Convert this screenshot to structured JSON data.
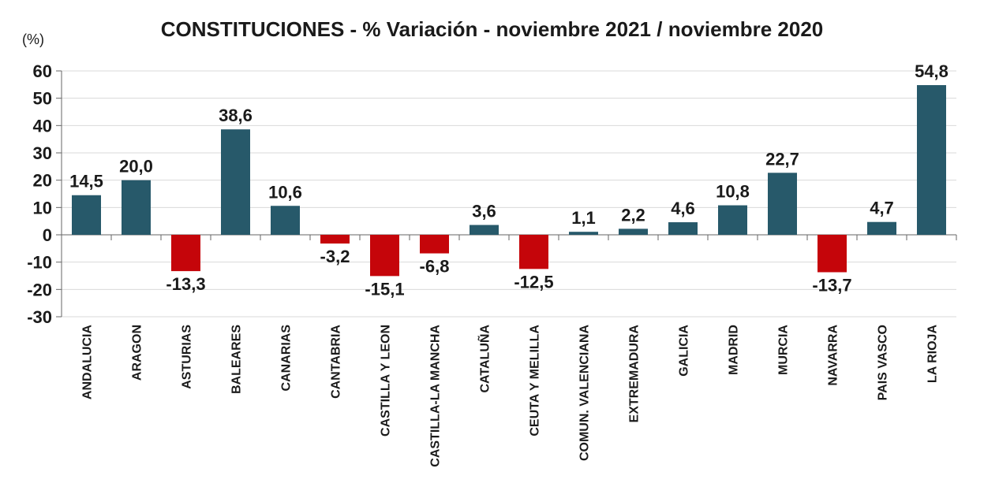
{
  "header": {
    "title": "CONSTITUCIONES - % Variación - noviembre 2021 / noviembre 2020",
    "y_axis_unit": "(%)"
  },
  "chart_data": {
    "type": "bar",
    "title": "CONSTITUCIONES - % Variación - noviembre 2021 / noviembre 2020",
    "xlabel": "",
    "ylabel": "(%)",
    "categories": [
      "ANDALUCIA",
      "ARAGON",
      "ASTURIAS",
      "BALEARES",
      "CANARIAS",
      "CANTABRIA",
      "CASTILLA Y LEON",
      "CASTILLA-LA MANCHA",
      "CATALUÑA",
      "CEUTA Y MELILLA",
      "COMUN. VALENCIANA",
      "EXTREMADURA",
      "GALICIA",
      "MADRID",
      "MURCIA",
      "NAVARRA",
      "PAIS VASCO",
      "LA RIOJA"
    ],
    "values": [
      14.5,
      20.0,
      -13.3,
      38.6,
      10.6,
      -3.2,
      -15.1,
      -6.8,
      3.6,
      -12.5,
      1.1,
      2.2,
      4.6,
      10.8,
      22.7,
      -13.7,
      4.7,
      54.8
    ],
    "value_labels": [
      "14,5",
      "20,0",
      "-13,3",
      "38,6",
      "10,6",
      "-3,2",
      "-15,1",
      "-6,8",
      "3,6",
      "-12,5",
      "1,1",
      "2,2",
      "4,6",
      "10,8",
      "22,7",
      "-13,7",
      "4,7",
      "54,8"
    ],
    "ylim": [
      -30,
      60
    ],
    "yticks": [
      60,
      50,
      40,
      30,
      20,
      10,
      0,
      -10,
      -20,
      -30
    ],
    "grid": "horizontal",
    "legend": "none",
    "colors": {
      "positive": "#27596A",
      "negative": "#C5050A",
      "gridline": "#D9D9D9",
      "axis": "#666666",
      "text": "#1A1A1A"
    }
  }
}
